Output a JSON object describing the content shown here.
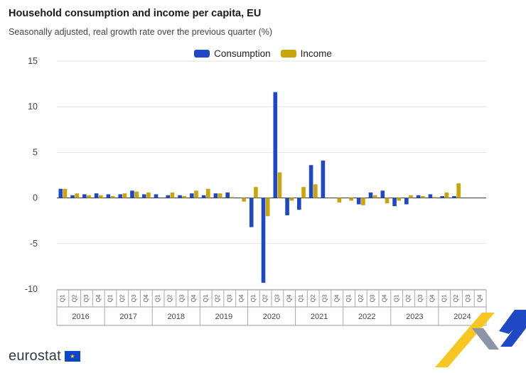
{
  "header": {
    "title": "Household consumption and income per capita, EU",
    "subtitle": "Seasonally adjusted, real growth rate over the previous quarter (%)"
  },
  "legend": {
    "items": [
      {
        "label": "Consumption",
        "color": "#1f48c4"
      },
      {
        "label": "Income",
        "color": "#c9a50a"
      }
    ]
  },
  "footer": {
    "logo_text": "eurostat"
  },
  "chart_data": {
    "type": "bar",
    "title": "Household consumption and income per capita, EU",
    "subtitle": "Seasonally adjusted, real growth rate over the previous quarter (%)",
    "xlabel": "",
    "ylabel": "",
    "ylim": [
      -10,
      15
    ],
    "yticks": [
      15,
      10,
      5,
      0,
      -5,
      -10
    ],
    "grid": true,
    "legend_position": "top-center",
    "quarters": [
      "Q1",
      "Q2",
      "Q3",
      "Q4"
    ],
    "years": [
      "2016",
      "2017",
      "2018",
      "2019",
      "2020",
      "2021",
      "2022",
      "2023",
      "2024"
    ],
    "series": [
      {
        "name": "Consumption",
        "color": "#1f48c4",
        "values": [
          1.0,
          0.3,
          0.4,
          0.5,
          0.4,
          0.4,
          0.8,
          0.4,
          0.4,
          0.3,
          0.3,
          0.5,
          0.3,
          0.5,
          0.6,
          null,
          -3.2,
          -9.3,
          11.6,
          -1.9,
          -1.3,
          3.6,
          4.1,
          null,
          null,
          -0.7,
          0.6,
          0.8,
          -0.9,
          -0.7,
          0.3,
          0.4,
          0.2,
          0.2,
          null,
          null
        ]
      },
      {
        "name": "Income",
        "color": "#c9a50a",
        "values": [
          1.0,
          0.5,
          0.3,
          0.3,
          0.2,
          0.5,
          0.7,
          0.6,
          null,
          0.6,
          0.2,
          0.8,
          1.0,
          0.5,
          0.1,
          -0.4,
          1.2,
          -2.0,
          2.8,
          -0.3,
          1.2,
          1.5,
          null,
          -0.5,
          -0.3,
          -0.8,
          0.3,
          -0.6,
          -0.3,
          0.3,
          0.2,
          0.1,
          0.6,
          1.6,
          null,
          null
        ]
      }
    ]
  }
}
